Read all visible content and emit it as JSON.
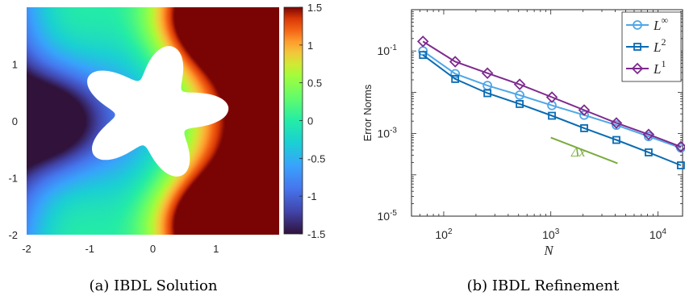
{
  "figure_a": {
    "caption": "(a) IBDL Solution",
    "chart_data": {
      "type": "heatmap",
      "title": "",
      "xlabel": "",
      "ylabel": "",
      "xlim": [
        -2,
        2
      ],
      "ylim": [
        -2,
        2
      ],
      "x_ticks": [
        "-2",
        "-1",
        "0",
        "1"
      ],
      "y_ticks": [
        "1",
        "0",
        "-1",
        "-2"
      ],
      "colorbar": {
        "range": [
          -1.5,
          1.5
        ],
        "ticks": [
          "1.5",
          "1",
          "0.5",
          "0",
          "-0.5",
          "-1",
          "-1.5"
        ],
        "colormap": "turbo"
      },
      "field_features": [
        {
          "kind": "maximum",
          "x": 0.8,
          "y": 1.8,
          "value": 1.5
        },
        {
          "kind": "maximum",
          "x": 0.8,
          "y": -1.8,
          "value": 1.5
        },
        {
          "kind": "minimum",
          "x": -1.6,
          "y": 0.0,
          "value": -1.5
        }
      ],
      "excluded_region": {
        "shape": "five-point star (hole)",
        "center": [
          0,
          0.15
        ],
        "rmax": 1.2,
        "rmin": 0.6
      }
    }
  },
  "figure_b": {
    "caption": "(b) IBDL Refinement",
    "chart_data": {
      "type": "line",
      "title": "",
      "xlabel": "N",
      "ylabel": "Error Norms",
      "xscale": "log",
      "yscale": "log",
      "xlim": [
        50,
        17000
      ],
      "ylim": [
        1e-05,
        1
      ],
      "x_ticks": [
        {
          "base": "10",
          "exp": "2"
        },
        {
          "base": "10",
          "exp": "3"
        },
        {
          "base": "10",
          "exp": "4"
        }
      ],
      "y_ticks": [
        {
          "base": "10",
          "exp": "-1"
        },
        {
          "base": "10",
          "exp": "-3"
        },
        {
          "base": "10",
          "exp": "-5"
        }
      ],
      "grid": false,
      "legend_position": "top-right",
      "x": [
        64,
        128,
        256,
        512,
        1024,
        2048,
        4096,
        8192,
        16384
      ],
      "series": [
        {
          "name": "L∞",
          "label_base": "L",
          "label_sup": "∞",
          "marker": "circle",
          "color": "#4fa7e6",
          "values": [
            0.1,
            0.028,
            0.0145,
            0.0085,
            0.0048,
            0.0028,
            0.0016,
            0.00085,
            0.00045
          ]
        },
        {
          "name": "L2",
          "label_base": "L",
          "label_sup": "2",
          "marker": "square",
          "color": "#0a6bb2",
          "values": [
            0.08,
            0.021,
            0.0095,
            0.0052,
            0.0027,
            0.00135,
            0.0007,
            0.00035,
            0.00017
          ]
        },
        {
          "name": "L1",
          "label_base": "L",
          "label_sup": "1",
          "marker": "diamond",
          "color": "#7e2a8e",
          "values": [
            0.17,
            0.055,
            0.029,
            0.0155,
            0.0076,
            0.0037,
            0.0018,
            0.00095,
            0.00048
          ]
        }
      ],
      "annotation": {
        "text": "Δx",
        "color": "#7aab3e",
        "line_x": [
          1000,
          4200
        ],
        "line_y": [
          0.0008,
          0.00019
        ]
      }
    }
  }
}
